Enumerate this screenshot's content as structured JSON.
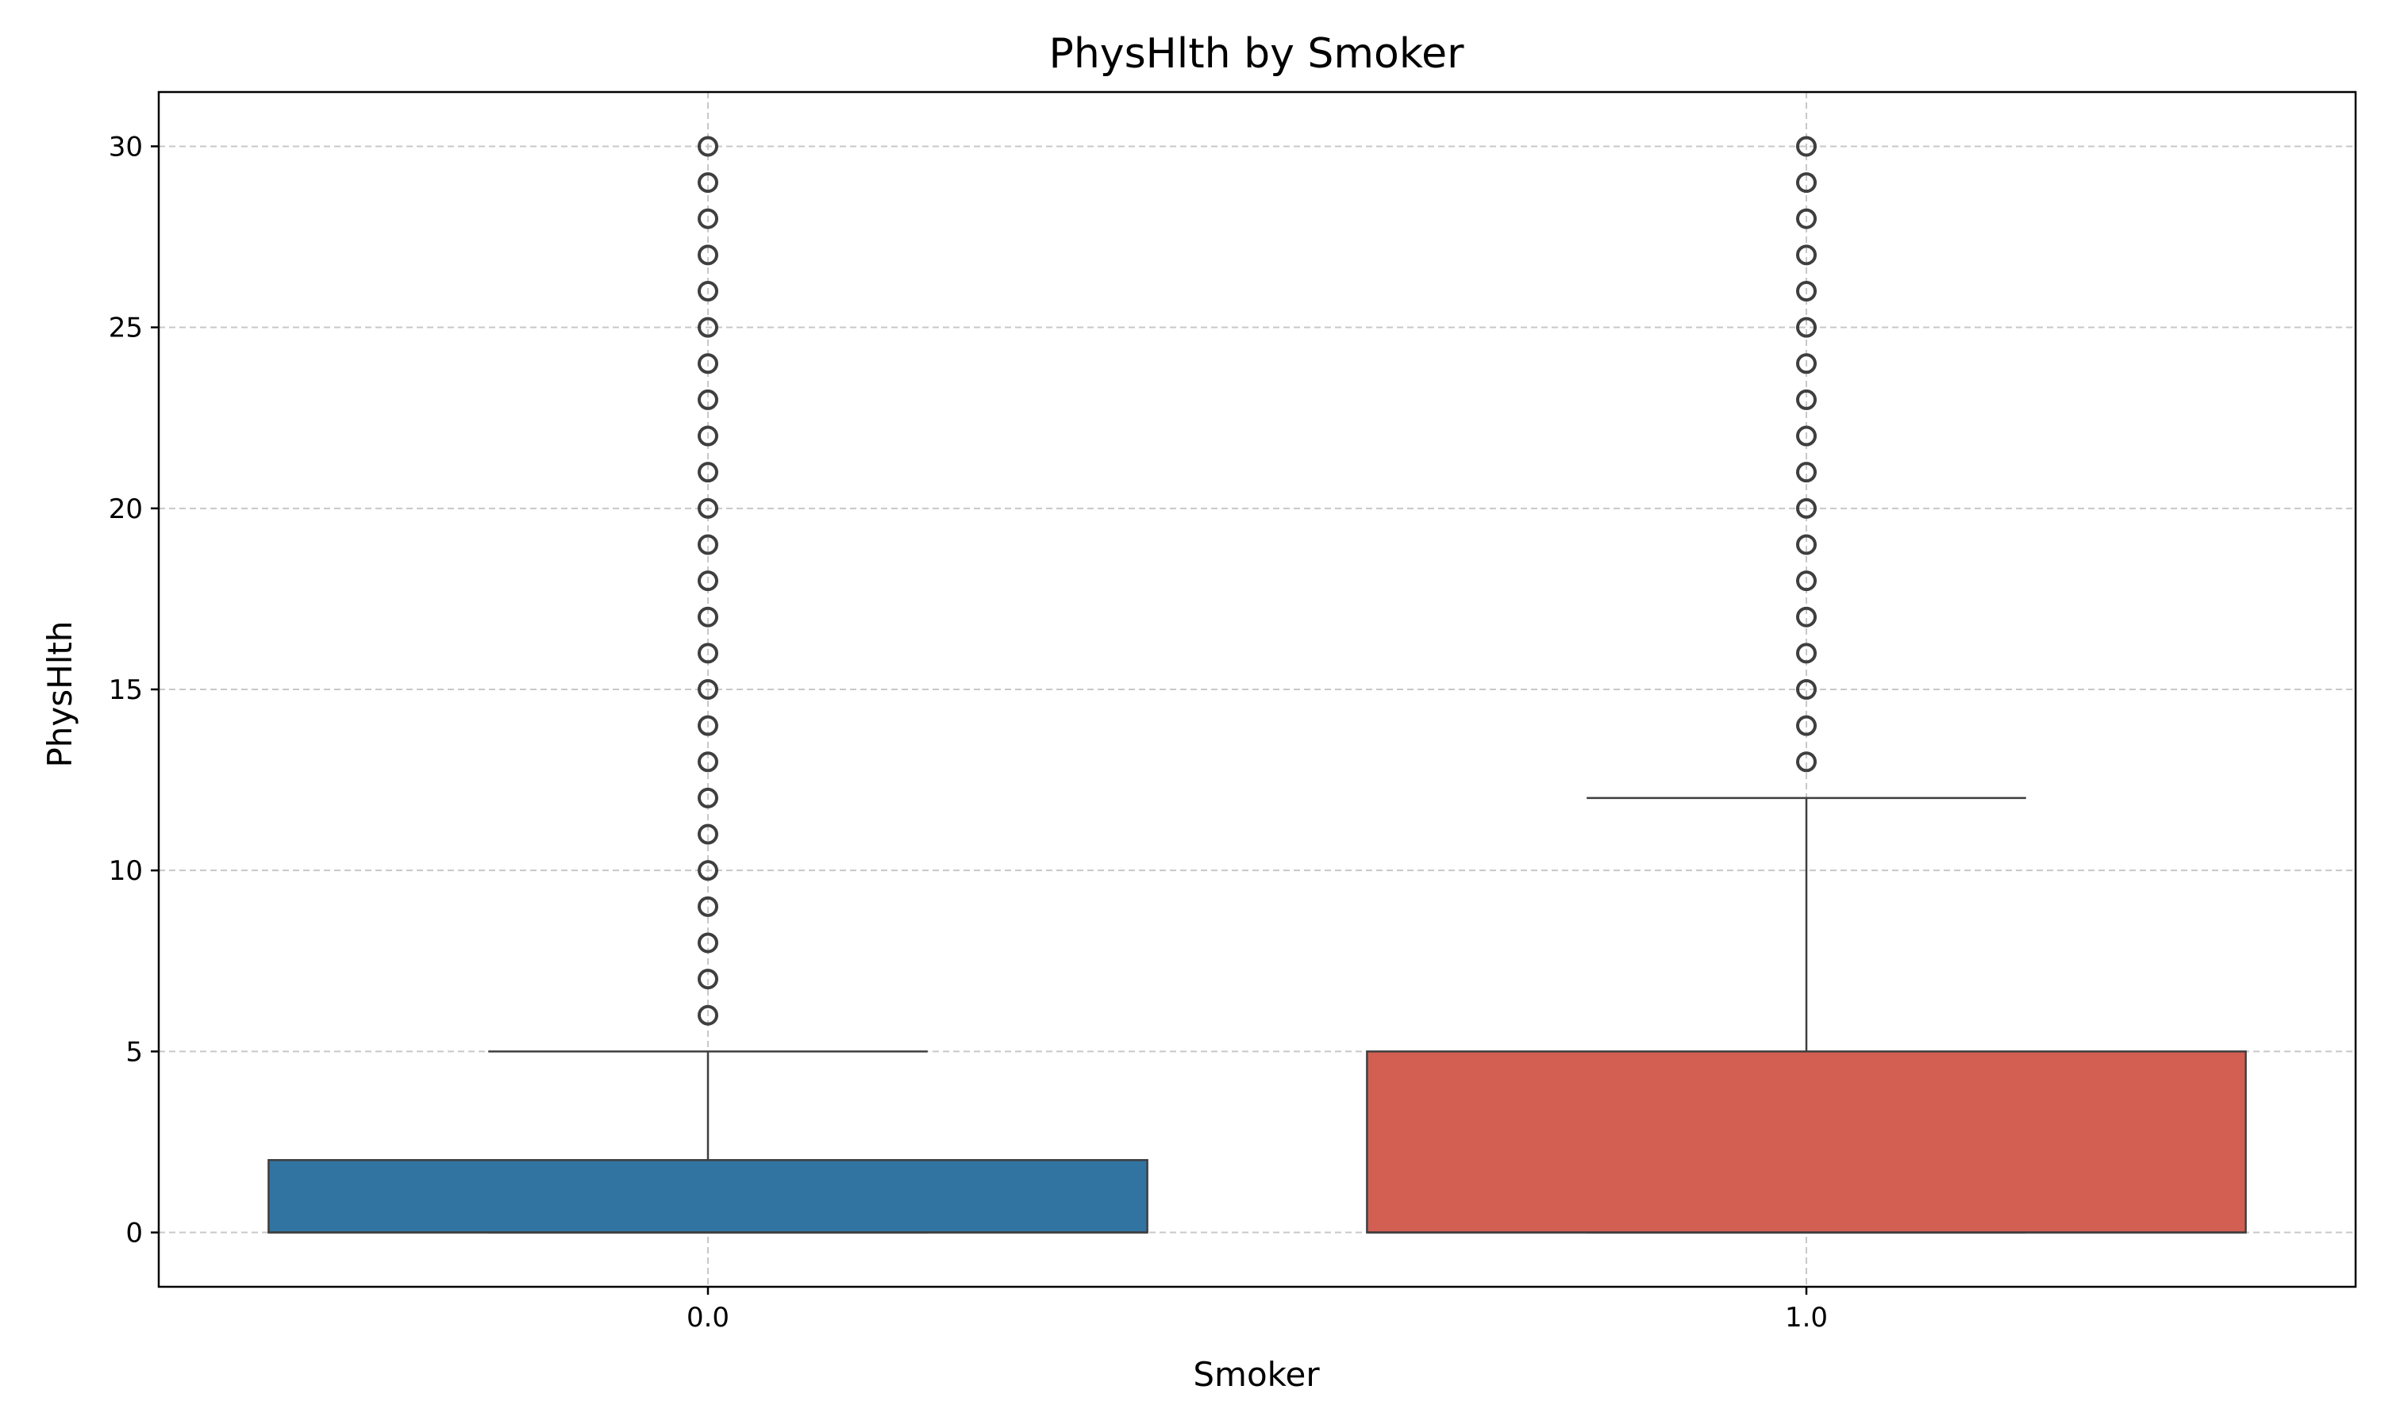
{
  "chart_data": {
    "type": "box",
    "title": "PhysHlth by Smoker",
    "xlabel": "Smoker",
    "ylabel": "PhysHlth",
    "categories": [
      "0.0",
      "1.0"
    ],
    "ylim": [
      -1.5,
      31.5
    ],
    "yticks": [
      0,
      5,
      10,
      15,
      20,
      25,
      30
    ],
    "grid": true,
    "grid_style": "dashed",
    "boxes": [
      {
        "category": "0.0",
        "color": "#3274a1",
        "whisker_low": 0,
        "q1": 0,
        "median": 0,
        "q3": 2,
        "whisker_high": 5,
        "outliers": [
          6,
          7,
          8,
          9,
          10,
          11,
          12,
          13,
          14,
          15,
          16,
          17,
          18,
          19,
          20,
          21,
          22,
          23,
          24,
          25,
          26,
          27,
          28,
          29,
          30
        ]
      },
      {
        "category": "1.0",
        "color": "#d35f52",
        "whisker_low": 0,
        "q1": 0,
        "median": 0,
        "q3": 5,
        "whisker_high": 12,
        "outliers": [
          13,
          14,
          15,
          16,
          17,
          18,
          19,
          20,
          21,
          22,
          23,
          24,
          25,
          26,
          27,
          28,
          29,
          30
        ]
      }
    ]
  }
}
